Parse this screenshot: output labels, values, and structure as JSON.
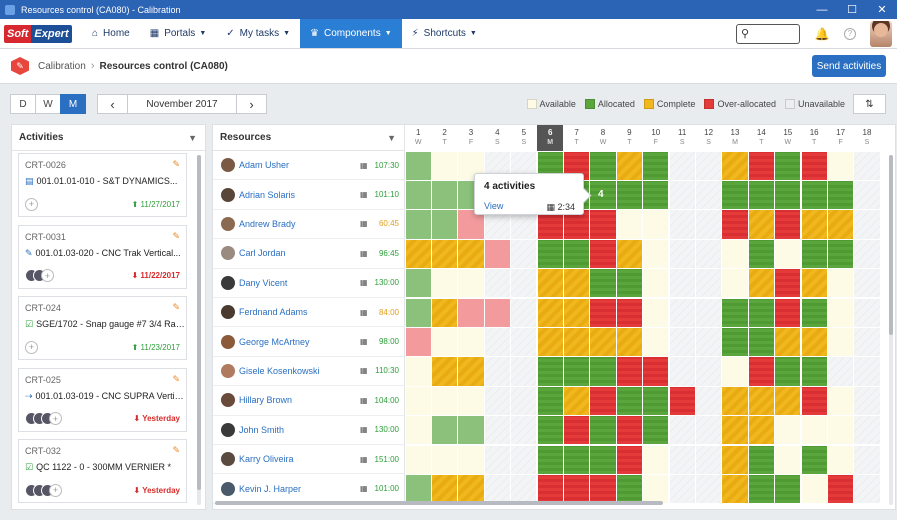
{
  "window": {
    "title": "Resources control (CA080) - Calibration"
  },
  "nav": {
    "logo_part1": "Soft",
    "logo_part2": "Expert",
    "items": [
      {
        "label": "Home",
        "icon": "home-icon",
        "glyph": "⌂"
      },
      {
        "label": "Portals",
        "icon": "grid-icon",
        "glyph": "▦"
      },
      {
        "label": "My tasks",
        "icon": "check-icon",
        "glyph": "✓"
      },
      {
        "label": "Components",
        "icon": "trophy-icon",
        "glyph": "🏆"
      },
      {
        "label": "Shortcuts",
        "icon": "bolt-icon",
        "glyph": "⚡"
      }
    ],
    "search_placeholder": ""
  },
  "breadcrumb": {
    "parent": "Calibration",
    "current": "Resources control (CA080)"
  },
  "send_label": "Send activities",
  "view": {
    "modes": [
      "D",
      "W",
      "M"
    ],
    "active": "M",
    "month": "November 2017"
  },
  "legend": [
    {
      "label": "Available",
      "color": "#fdfae6"
    },
    {
      "label": "Allocated",
      "color": "#5aa53c"
    },
    {
      "label": "Complete",
      "color": "#f0b81e"
    },
    {
      "label": "Over-allocated",
      "color": "#e53a3a"
    },
    {
      "label": "Unavailable",
      "color": "#eceef1"
    }
  ],
  "activities_title": "Activities",
  "activities": [
    {
      "code": "CRT-0026",
      "title": "001.01.01-010 - S&T DYNAMICS...",
      "icon": "clipboard-icon",
      "glyph": "▤",
      "date": "11/27/2017",
      "status": "green",
      "people": 0
    },
    {
      "code": "CRT-0031",
      "title": "001.01.03-020 - CNC Trak Vertical...",
      "icon": "wrench-icon",
      "glyph": "✎",
      "date": "11/22/2017",
      "status": "red",
      "people": 2
    },
    {
      "code": "CRT-024",
      "title": "SGE/1702 - Snap gauge #7 3/4 Range",
      "icon": "checkbox-icon",
      "glyph": "☑",
      "date": "11/23/2017",
      "status": "green",
      "people": 0
    },
    {
      "code": "CRT-025",
      "title": "001.01.03-019 - CNC SUPRA Vertic...",
      "icon": "flow-icon",
      "glyph": "⇢",
      "date": "Yesterday",
      "status": "red",
      "people": 3
    },
    {
      "code": "CRT-032",
      "title": "QC 1122 - 0 - 300MM VERNIER *",
      "icon": "checkbox-icon",
      "glyph": "☑",
      "date": "Yesterday",
      "status": "red",
      "people": 3
    }
  ],
  "resources_title": "Resources",
  "days": [
    {
      "n": "1",
      "d": "W"
    },
    {
      "n": "2",
      "d": "T"
    },
    {
      "n": "3",
      "d": "F"
    },
    {
      "n": "4",
      "d": "S"
    },
    {
      "n": "5",
      "d": "S"
    },
    {
      "n": "6",
      "d": "M"
    },
    {
      "n": "7",
      "d": "T"
    },
    {
      "n": "8",
      "d": "W"
    },
    {
      "n": "9",
      "d": "T"
    },
    {
      "n": "10",
      "d": "F"
    },
    {
      "n": "11",
      "d": "S"
    },
    {
      "n": "12",
      "d": "S"
    },
    {
      "n": "13",
      "d": "M"
    },
    {
      "n": "14",
      "d": "T"
    },
    {
      "n": "15",
      "d": "W"
    },
    {
      "n": "16",
      "d": "T"
    },
    {
      "n": "17",
      "d": "F"
    },
    {
      "n": "18",
      "d": "S"
    }
  ],
  "today_index": 5,
  "resources": [
    {
      "name": "Adam Usher",
      "hours": "107:30",
      "hcolor": "#2e9e3a",
      "av": "#7a5a44",
      "cells": "lg,av,av,un,un,al,ov,al,co,al,un,un,co,ov,al,ov,av,un"
    },
    {
      "name": "Adrian Solaris",
      "hours": "101:10",
      "hcolor": "#2e9e3a",
      "av": "#5a4638",
      "cells": "lg,lg,lg,un,un,al,al,al,al,al,un,un,al,al,al,al,al,un"
    },
    {
      "name": "Andrew Brady",
      "hours": "60:45",
      "hcolor": "#e0a020",
      "av": "#8a6a50",
      "cells": "lg,lg,lr,un,un,ov,ov,ov,av,av,un,un,ov,co,ov,co,co,un"
    },
    {
      "name": "Carl Jordan",
      "hours": "96:45",
      "hcolor": "#2e9e3a",
      "av": "#9a8a80",
      "cells": "co,co,co,lr,un,al,al,ov,co,av,un,un,av,al,av,al,al,un"
    },
    {
      "name": "Dany Vicent",
      "hours": "130:00",
      "hcolor": "#2e9e3a",
      "av": "#3a3a3a",
      "cells": "lg,av,av,un,un,co,co,al,al,av,un,un,av,co,ov,co,av,un"
    },
    {
      "name": "Ferdnand Adams",
      "hours": "84:00",
      "hcolor": "#e0a020",
      "av": "#4a3a30",
      "cells": "lg,co,lr,lr,un,co,co,ov,ov,av,un,un,al,al,ov,al,av,un"
    },
    {
      "name": "George McArtney",
      "hours": "98:00",
      "hcolor": "#2e9e3a",
      "av": "#8a5a3a",
      "cells": "lr,av,av,un,un,co,co,co,co,av,un,un,al,al,co,co,av,un"
    },
    {
      "name": "Gisele Kosenkowski",
      "hours": "110:30",
      "hcolor": "#2e9e3a",
      "av": "#b07a60",
      "cells": "av,co,co,un,un,al,al,al,ov,ov,un,un,av,ov,al,al,un,un"
    },
    {
      "name": "Hillary Brown",
      "hours": "104:00",
      "hcolor": "#2e9e3a",
      "av": "#6a4a3a",
      "cells": "av,av,av,un,un,al,co,ov,al,al,ov,un,co,co,co,ov,av,un"
    },
    {
      "name": "John Smith",
      "hours": "130:00",
      "hcolor": "#2e9e3a",
      "av": "#3a3a3a",
      "cells": "av,lg,lg,un,un,al,ov,al,ov,al,un,un,co,co,av,av,av,un"
    },
    {
      "name": "Karry Oliveira",
      "hours": "151:00",
      "hcolor": "#2e9e3a",
      "av": "#5a4a40",
      "cells": "av,av,av,un,un,al,al,al,ov,av,un,un,co,al,av,al,av,un"
    },
    {
      "name": "Kevin J. Harper",
      "hours": "101:00",
      "hcolor": "#2e9e3a",
      "av": "#4a5a6a",
      "cells": "lg,co,co,un,un,ov,ov,ov,al,av,un,un,co,al,al,av,ov,un"
    }
  ],
  "tooltip": {
    "title": "4 activities",
    "view": "View",
    "time": "2:34",
    "count": "4"
  }
}
